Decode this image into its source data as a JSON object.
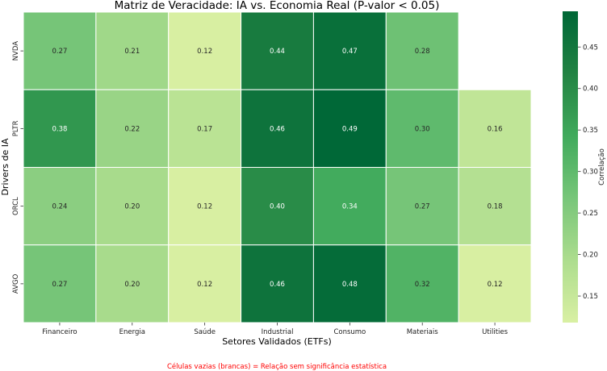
{
  "chart_data": {
    "type": "heatmap",
    "title": "Matriz de Veracidade: IA vs. Economia Real (P-valor < 0.05)",
    "xlabel": "Setores Validados (ETFs)",
    "ylabel": "Drivers de IA",
    "x_categories": [
      "Financeiro",
      "Energia",
      "Saúde",
      "Industrial",
      "Consumo",
      "Materiais",
      "Utilities"
    ],
    "y_categories": [
      "NVDA",
      "PLTR",
      "ORCL",
      "AVGO"
    ],
    "values": [
      [
        0.27,
        0.21,
        0.12,
        0.44,
        0.47,
        0.28,
        null
      ],
      [
        0.38,
        0.22,
        0.17,
        0.46,
        0.49,
        0.3,
        0.16
      ],
      [
        0.24,
        0.2,
        0.12,
        0.4,
        0.34,
        0.27,
        0.18
      ],
      [
        0.27,
        0.2,
        0.12,
        0.46,
        0.48,
        0.32,
        0.12
      ]
    ],
    "value_format": "0.00",
    "colormap": "YlGn",
    "colorbar": {
      "label": "Correlação",
      "range": [
        0.118,
        0.493
      ],
      "ticks": [
        0.15,
        0.2,
        0.25,
        0.3,
        0.35,
        0.4,
        0.45
      ],
      "tick_labels": [
        "0.15",
        "0.20",
        "0.25",
        "0.30",
        "0.35",
        "0.40",
        "0.45"
      ]
    },
    "missing_cell_color": "#ffffff",
    "annotation": "Células vazias (brancas) = Relação sem significância estatística",
    "annotation_color": "#ff0000",
    "grid": false
  }
}
